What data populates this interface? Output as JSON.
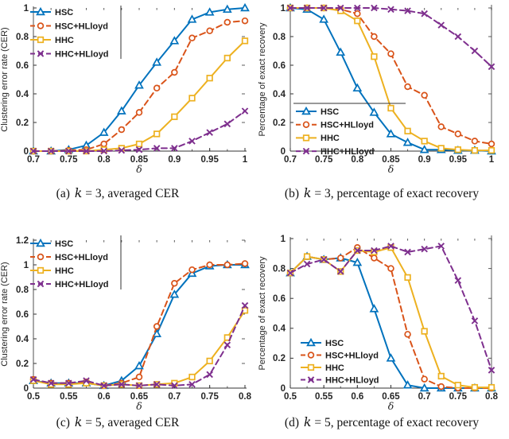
{
  "figure": {
    "captions": [
      {
        "prefix": "(a)",
        "variable": "k",
        "rest": "= 3, averaged CER"
      },
      {
        "prefix": "(b)",
        "variable": "k",
        "rest": "= 3, percentage of exact recovery"
      },
      {
        "prefix": "(c)",
        "variable": "k",
        "rest": "= 5, averaged CER"
      },
      {
        "prefix": "(d)",
        "variable": "k",
        "rest": "= 5, percentage of exact recovery"
      }
    ]
  },
  "colors": {
    "hsc": "#0072BD",
    "hsc_hlloyd": "#D95319",
    "hhc": "#EDB120",
    "hhc_hlloyd": "#7E2F8E",
    "axis": "#333333",
    "right_spine": "#7f7f7f"
  },
  "chart_data": [
    {
      "id": "a",
      "type": "line",
      "title": "",
      "xlabel": "δ",
      "ylabel": "Clustering error rate (CER)",
      "xlim": [
        0.7,
        1.0
      ],
      "ylim": [
        0,
        1.0
      ],
      "xticks": [
        "0.7",
        "0.75",
        "0.8",
        "0.85",
        "0.9",
        "0.95",
        "1"
      ],
      "yticks": [
        "0",
        "0.2",
        "0.4",
        "0.6",
        "0.8",
        "1"
      ],
      "x": [
        0.7,
        0.725,
        0.75,
        0.775,
        0.8,
        0.825,
        0.85,
        0.875,
        0.9,
        0.925,
        0.95,
        0.975,
        1.0
      ],
      "series": [
        {
          "name": "HSC",
          "color": "#0072BD",
          "line": "solid",
          "marker": "triangle",
          "values": [
            0,
            0,
            0.01,
            0.04,
            0.13,
            0.28,
            0.46,
            0.62,
            0.77,
            0.92,
            0.97,
            0.99,
            1.0
          ]
        },
        {
          "name": "HSC+HLloyd",
          "color": "#D95319",
          "line": "dashed",
          "marker": "circle",
          "values": [
            0,
            0,
            0.005,
            0.01,
            0.05,
            0.15,
            0.27,
            0.44,
            0.55,
            0.79,
            0.84,
            0.9,
            0.91
          ]
        },
        {
          "name": "HHC",
          "color": "#EDB120",
          "line": "solid",
          "marker": "square",
          "values": [
            0,
            0,
            0,
            0,
            0.01,
            0.02,
            0.05,
            0.12,
            0.24,
            0.37,
            0.51,
            0.65,
            0.77
          ]
        },
        {
          "name": "HHC+HLloyd",
          "color": "#7E2F8E",
          "line": "dashed",
          "marker": "x",
          "values": [
            0,
            0,
            0,
            0,
            0,
            0.005,
            0.01,
            0.02,
            0.02,
            0.07,
            0.13,
            0.19,
            0.28
          ]
        }
      ],
      "legend": {
        "position": "top-left",
        "border": "right"
      },
      "grid": false,
      "right_spine": false
    },
    {
      "id": "b",
      "type": "line",
      "title": "",
      "xlabel": "δ",
      "ylabel": "Percentage of exact recovery",
      "xlim": [
        0.7,
        1.0
      ],
      "ylim": [
        0,
        1.0
      ],
      "xticks": [
        "0.7",
        "0.75",
        "0.8",
        "0.85",
        "0.9",
        "0.95",
        "1"
      ],
      "yticks": [
        "0",
        "0.2",
        "0.4",
        "0.6",
        "0.8",
        "1"
      ],
      "x": [
        0.7,
        0.725,
        0.75,
        0.775,
        0.8,
        0.825,
        0.85,
        0.875,
        0.9,
        0.925,
        0.95,
        0.975,
        1.0
      ],
      "series": [
        {
          "name": "HSC",
          "color": "#0072BD",
          "line": "solid",
          "marker": "triangle",
          "values": [
            1,
            0.99,
            0.92,
            0.69,
            0.44,
            0.27,
            0.12,
            0.06,
            0.01,
            0.01,
            0.005,
            0.005,
            0
          ]
        },
        {
          "name": "HSC+HLloyd",
          "color": "#D95319",
          "line": "dashed",
          "marker": "circle",
          "values": [
            1,
            1,
            1,
            0.99,
            0.96,
            0.8,
            0.68,
            0.45,
            0.39,
            0.17,
            0.12,
            0.07,
            0.05
          ]
        },
        {
          "name": "HHC",
          "color": "#EDB120",
          "line": "solid",
          "marker": "square",
          "values": [
            1,
            1,
            1,
            0.98,
            0.91,
            0.66,
            0.3,
            0.14,
            0.07,
            0.02,
            0.01,
            0.005,
            0.005
          ]
        },
        {
          "name": "HHC+HLloyd",
          "color": "#7E2F8E",
          "line": "dashed",
          "marker": "x",
          "values": [
            1,
            1,
            1,
            1,
            1,
            1,
            0.99,
            0.98,
            0.96,
            0.88,
            0.8,
            0.7,
            0.59
          ]
        }
      ],
      "legend": {
        "position": "mid-left",
        "border": "top"
      },
      "grid": false,
      "right_spine": true
    },
    {
      "id": "c",
      "type": "line",
      "title": "",
      "xlabel": "δ",
      "ylabel": "Clustering error rate (CER)",
      "xlim": [
        0.5,
        0.8
      ],
      "ylim": [
        0,
        1.2
      ],
      "xticks": [
        "0.5",
        "0.55",
        "0.6",
        "0.65",
        "0.7",
        "0.75",
        "0.8"
      ],
      "yticks": [
        "0",
        "0.2",
        "0.4",
        "0.6",
        "0.8",
        "1",
        "1.2"
      ],
      "x": [
        0.5,
        0.525,
        0.55,
        0.575,
        0.6,
        0.625,
        0.65,
        0.675,
        0.7,
        0.725,
        0.75,
        0.775,
        0.8
      ],
      "series": [
        {
          "name": "HSC",
          "color": "#0072BD",
          "line": "solid",
          "marker": "triangle",
          "values": [
            0.06,
            0.04,
            0.04,
            0.04,
            0.02,
            0.06,
            0.18,
            0.44,
            0.76,
            0.93,
            0.99,
            1.0,
            1.0
          ]
        },
        {
          "name": "HSC+HLloyd",
          "color": "#D95319",
          "line": "dashed",
          "marker": "circle",
          "values": [
            0.07,
            0.04,
            0.04,
            0.05,
            0.02,
            0.04,
            0.09,
            0.5,
            0.85,
            0.96,
            1.0,
            1.0,
            1.01
          ]
        },
        {
          "name": "HHC",
          "color": "#EDB120",
          "line": "solid",
          "marker": "square",
          "values": [
            0.06,
            0.03,
            0.03,
            0.04,
            0.02,
            0.03,
            0.02,
            0.03,
            0.04,
            0.09,
            0.22,
            0.41,
            0.63
          ]
        },
        {
          "name": "HHC+HLloyd",
          "color": "#7E2F8E",
          "line": "dashed",
          "marker": "x",
          "values": [
            0.07,
            0.04,
            0.04,
            0.06,
            0.02,
            0.03,
            0.02,
            0.03,
            0.02,
            0.03,
            0.11,
            0.35,
            0.67
          ]
        }
      ],
      "legend": {
        "position": "top-left",
        "border": "right"
      },
      "grid": false,
      "right_spine": false
    },
    {
      "id": "d",
      "type": "line",
      "title": "",
      "xlabel": "δ",
      "ylabel": "Percentage of exact recovery",
      "xlim": [
        0.5,
        0.8
      ],
      "ylim": [
        0,
        1.0
      ],
      "xticks": [
        "0.5",
        "0.55",
        "0.6",
        "0.65",
        "0.7",
        "0.75",
        "0.8"
      ],
      "yticks": [
        "0",
        "0.2",
        "0.4",
        "0.6",
        "0.8",
        "1"
      ],
      "x": [
        0.5,
        0.525,
        0.55,
        0.575,
        0.6,
        0.625,
        0.65,
        0.675,
        0.7,
        0.725,
        0.75,
        0.775,
        0.8
      ],
      "series": [
        {
          "name": "HSC",
          "color": "#0072BD",
          "line": "solid",
          "marker": "triangle",
          "values": [
            0.77,
            0.88,
            0.86,
            0.87,
            0.84,
            0.53,
            0.2,
            0.02,
            0,
            0,
            0,
            0,
            0
          ]
        },
        {
          "name": "HSC+HLloyd",
          "color": "#D95319",
          "line": "dashed",
          "marker": "circle",
          "values": [
            0.77,
            0.88,
            0.86,
            0.87,
            0.94,
            0.87,
            0.8,
            0.36,
            0.06,
            0.01,
            0,
            0,
            0
          ]
        },
        {
          "name": "HHC",
          "color": "#EDB120",
          "line": "solid",
          "marker": "square",
          "values": [
            0.77,
            0.88,
            0.86,
            0.78,
            0.92,
            0.91,
            0.94,
            0.74,
            0.38,
            0.08,
            0.02,
            0.005,
            0.005
          ]
        },
        {
          "name": "HHC+HLloyd",
          "color": "#7E2F8E",
          "line": "dashed",
          "marker": "x",
          "values": [
            0.77,
            0.83,
            0.86,
            0.78,
            0.92,
            0.92,
            0.95,
            0.91,
            0.93,
            0.95,
            0.72,
            0.45,
            0.12
          ]
        }
      ],
      "legend": {
        "position": "lower-left",
        "border": "none"
      },
      "grid": false,
      "right_spine": true
    }
  ]
}
